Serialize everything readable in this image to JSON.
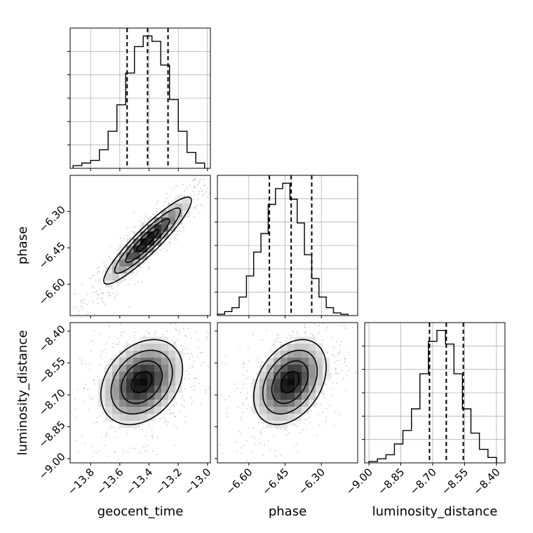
{
  "chart_data": {
    "type": "corner",
    "title": "",
    "parameters": [
      "geocent_time",
      "phase",
      "luminosity_distance"
    ],
    "axes": {
      "geocent_time": {
        "range": [
          -13.94,
          -12.98
        ],
        "ticks": [
          -13.8,
          -13.6,
          -13.4,
          -13.2,
          -13.0
        ],
        "tick_labels": [
          "−13.8",
          "−13.6",
          "−13.4",
          "−13.2",
          "−13.0"
        ]
      },
      "phase": {
        "range": [
          -6.73,
          -6.15
        ],
        "ticks": [
          -6.6,
          -6.45,
          -6.3
        ],
        "tick_labels": [
          "−6.60",
          "−6.45",
          "−6.30"
        ]
      },
      "luminosity_distance": {
        "range": [
          -9.02,
          -8.36
        ],
        "ticks": [
          -9.0,
          -8.85,
          -8.7,
          -8.55,
          -8.4
        ],
        "tick_labels": [
          "−9.00",
          "−8.85",
          "−8.70",
          "−8.55",
          "−8.40"
        ]
      }
    },
    "histograms": [
      {
        "parameter": "geocent_time",
        "bin_edges": [
          -13.92,
          -13.86,
          -13.8,
          -13.74,
          -13.68,
          -13.62,
          -13.56,
          -13.5,
          -13.44,
          -13.38,
          -13.32,
          -13.26,
          -13.2,
          -13.14,
          -13.08,
          -13.02
        ],
        "counts": [
          2,
          4,
          6,
          14,
          28,
          48,
          72,
          92,
          100,
          96,
          78,
          52,
          28,
          12,
          4
        ],
        "quantiles": [
          -13.55,
          -13.41,
          -13.27
        ]
      },
      {
        "parameter": "phase",
        "bin_edges": [
          -6.73,
          -6.7,
          -6.67,
          -6.64,
          -6.61,
          -6.58,
          -6.55,
          -6.52,
          -6.49,
          -6.46,
          -6.43,
          -6.4,
          -6.37,
          -6.34,
          -6.31,
          -6.28,
          -6.25,
          -6.22,
          -6.19
        ],
        "counts": [
          1,
          3,
          6,
          14,
          30,
          48,
          62,
          84,
          96,
          100,
          88,
          70,
          46,
          28,
          14,
          6,
          2,
          1
        ],
        "quantiles": [
          -6.515,
          -6.425,
          -6.34
        ]
      },
      {
        "parameter": "luminosity_distance",
        "bin_edges": [
          -9.0,
          -8.96,
          -8.92,
          -8.88,
          -8.84,
          -8.8,
          -8.76,
          -8.72,
          -8.68,
          -8.64,
          -8.6,
          -8.56,
          -8.52,
          -8.48,
          -8.44,
          -8.4
        ],
        "counts": [
          1,
          3,
          6,
          14,
          24,
          40,
          66,
          90,
          98,
          88,
          66,
          40,
          22,
          10,
          4
        ],
        "quantiles": [
          -8.715,
          -8.636,
          -8.556
        ]
      }
    ],
    "density_2d": [
      {
        "x": "geocent_time",
        "y": "phase",
        "mean": [
          -13.41,
          -6.42
        ],
        "sd": [
          0.15,
          0.09
        ],
        "correlation": 0.92
      },
      {
        "x": "geocent_time",
        "y": "luminosity_distance",
        "mean": [
          -13.45,
          -8.64
        ],
        "sd": [
          0.14,
          0.1
        ],
        "correlation": 0.3
      },
      {
        "x": "phase",
        "y": "luminosity_distance",
        "mean": [
          -6.43,
          -8.64
        ],
        "sd": [
          0.075,
          0.1
        ],
        "correlation": 0.35
      }
    ],
    "grid": true,
    "density_cmap": "greys"
  }
}
